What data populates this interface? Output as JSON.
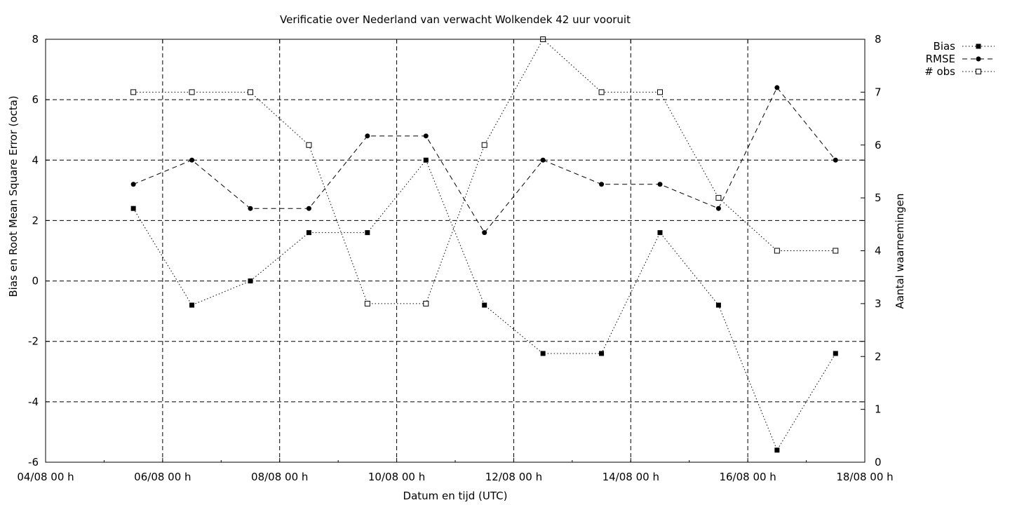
{
  "chart_data": {
    "type": "line",
    "title": "Verificatie over Nederland van verwacht Wolkendek 42 uur vooruit",
    "xlabel": "Datum en tijd (UTC)",
    "ylabel": "Bias en Root Mean Square Error (octa)",
    "y2label": "Aantal waarnemingen",
    "x_ticks": [
      "04/08 00 h",
      "06/08 00 h",
      "08/08 00 h",
      "10/08 00 h",
      "12/08 00 h",
      "14/08 00 h",
      "16/08 00 h",
      "18/08 00 h"
    ],
    "x_tick_values": [
      0,
      2,
      4,
      6,
      8,
      10,
      12,
      14
    ],
    "x_unit": "days after 04/08 00 h",
    "xlim": [
      0,
      14
    ],
    "ylim": [
      -6,
      8
    ],
    "y_ticks": [
      "-6",
      "-4",
      "-2",
      "0",
      "2",
      "4",
      "6",
      "8"
    ],
    "y2lim": [
      0,
      8
    ],
    "y2_ticks": [
      "0",
      "1",
      "2",
      "3",
      "4",
      "5",
      "6",
      "7",
      "8"
    ],
    "grid": true,
    "legend_position": "top-right outside",
    "x": [
      1.5,
      2.5,
      3.5,
      4.5,
      5.5,
      6.5,
      7.5,
      8.5,
      9.5,
      10.5,
      11.5,
      12.5,
      13.5
    ],
    "series": [
      {
        "name": "Bias",
        "axis": "y",
        "style": "dotted",
        "marker": "filled-square",
        "values": [
          2.4,
          -0.8,
          0.0,
          1.6,
          1.6,
          4.0,
          -0.8,
          -2.4,
          -2.4,
          1.6,
          -0.8,
          -5.6,
          -2.4
        ]
      },
      {
        "name": "RMSE",
        "axis": "y",
        "style": "dashed",
        "marker": "filled-circle",
        "values": [
          3.2,
          4.0,
          2.4,
          2.4,
          4.8,
          4.8,
          1.6,
          4.0,
          3.2,
          3.2,
          2.4,
          6.4,
          4.0
        ]
      },
      {
        "name": "# obs",
        "axis": "y2",
        "style": "dotted",
        "marker": "open-square",
        "values": [
          7,
          7,
          7,
          6,
          3,
          3,
          6,
          8,
          7,
          7,
          5,
          4,
          4
        ]
      }
    ]
  }
}
